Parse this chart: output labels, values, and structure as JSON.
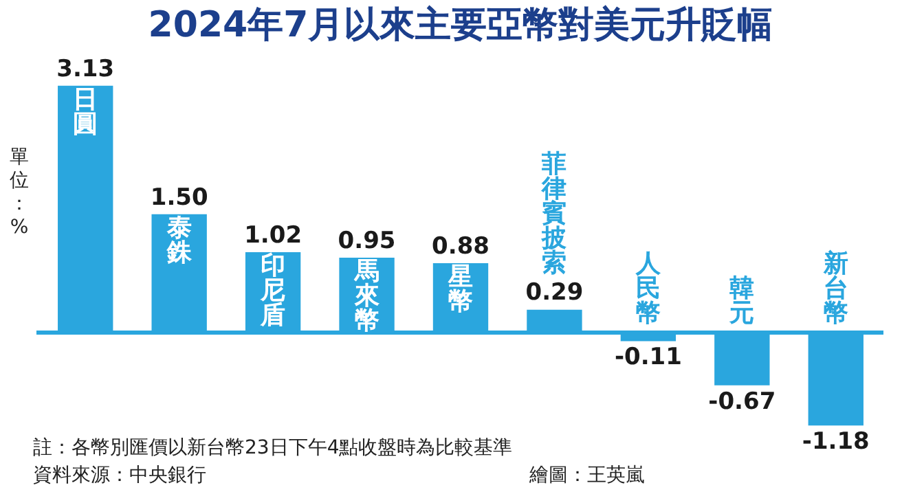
{
  "chart_data": {
    "type": "bar",
    "title": "2024年7月以來主要亞幣對美元升貶幅",
    "ylabel": "單位：%",
    "categories": [
      "日圓",
      "泰銖",
      "印尼盾",
      "馬來幣",
      "星幣",
      "菲律賓披索",
      "人民幣",
      "韓元",
      "新台幣"
    ],
    "values": [
      3.13,
      1.5,
      1.02,
      0.95,
      0.88,
      0.29,
      -0.11,
      -0.67,
      -1.18
    ],
    "color": "#2aa6de",
    "value_labels": [
      "3.13",
      "1.50",
      "1.02",
      "0.95",
      "0.88",
      "0.29",
      "-0.11",
      "-0.67",
      "-1.18"
    ],
    "grid": false,
    "legend": false,
    "tick_labels": false,
    "annotations": [
      "註：各幣別匯價以新台幣23日下午4點收盤時為比較基準",
      "資料來源：中央銀行",
      "繪圖：王英嵐"
    ]
  }
}
